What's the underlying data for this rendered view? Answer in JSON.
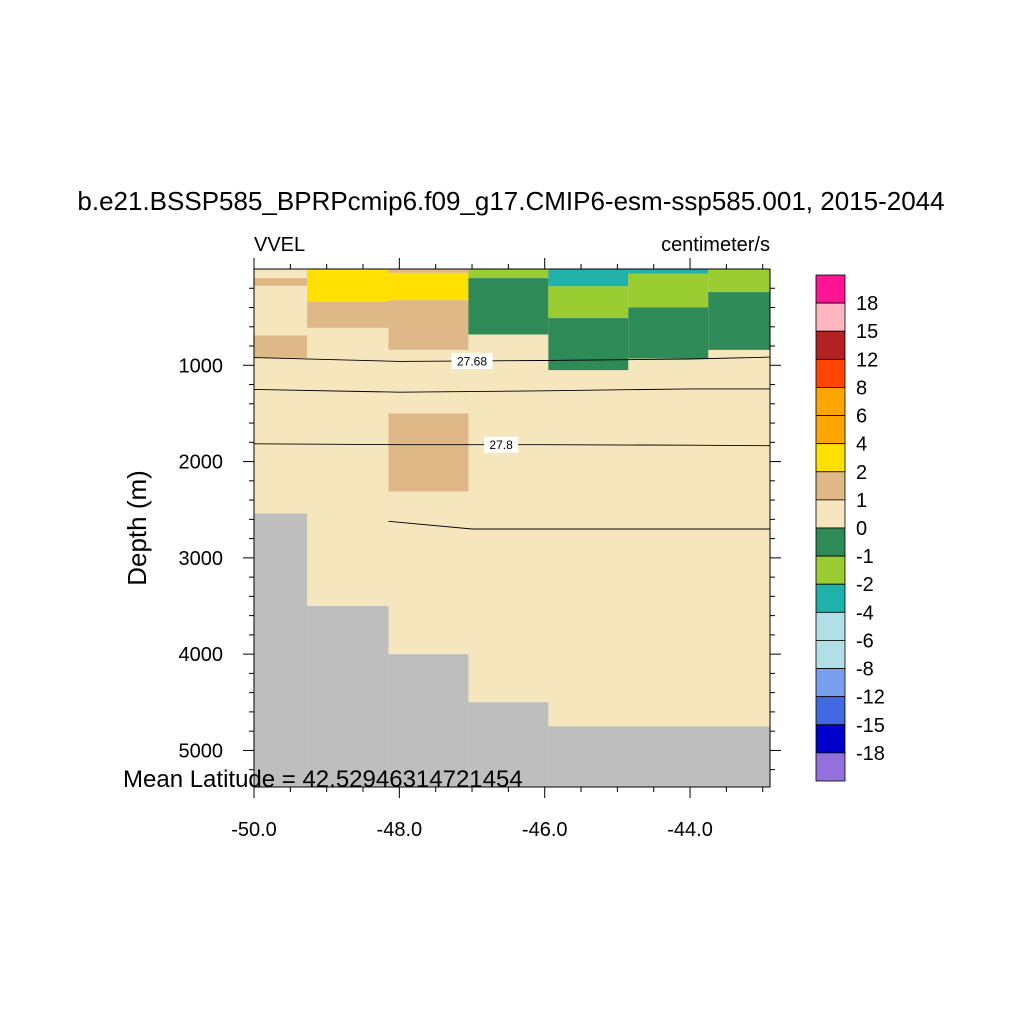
{
  "chart_data": {
    "type": "heatmap",
    "title": "b.e21.BSSP585_BPRPcmip6.f09_g17.CMIP6-esm-ssp585.001, 2015-2044",
    "left_label": "VVEL",
    "right_label": "centimeter/s",
    "ylabel": "Depth (m)",
    "annotation": "Mean Latitude = 42.52946314721454",
    "xlim": [
      -50.0,
      -42.9
    ],
    "ylim": [
      5380,
      0
    ],
    "x_ticks": [
      -50.0,
      -48.0,
      -46.0,
      -44.0
    ],
    "x_tick_labels": [
      "-50.0",
      "-48.0",
      "-46.0",
      "-44.0"
    ],
    "y_ticks": [
      1000,
      2000,
      3000,
      4000,
      5000
    ],
    "y_tick_labels": [
      "1000",
      "2000",
      "3000",
      "4000",
      "5000"
    ],
    "land_color": "#bebebe",
    "colorbar": {
      "labels": [
        "18",
        "15",
        "12",
        "8",
        "6",
        "4",
        "2",
        "1",
        "0",
        "-1",
        "-2",
        "-4",
        "-6",
        "-8",
        "-12",
        "-15",
        "-18"
      ],
      "colors": [
        "#ff1493",
        "#ffb6c1",
        "#b22222",
        "#ff4500",
        "#ffa500",
        "#ffa500",
        "#ffe000",
        "#deb887",
        "#f5e6be",
        "#2e8b57",
        "#9acd32",
        "#20b2aa",
        "#b0e0e6",
        "#b0e0e6",
        "#7b9fef",
        "#4169e1",
        "#0000cd",
        "#9370db"
      ]
    },
    "background": {
      "value_range": "0 to 1",
      "color": "#f5e6be"
    },
    "cells": [
      {
        "x0": -50.0,
        "x1": -49.27,
        "d0": 95,
        "d1": 175,
        "value_range": "1 to 2",
        "color": "#deb887"
      },
      {
        "x0": -49.27,
        "x1": -48.15,
        "d0": 5,
        "d1": 340,
        "value_range": "2 to 4",
        "color": "#ffe000"
      },
      {
        "x0": -48.15,
        "x1": -47.05,
        "d0": 5,
        "d1": 40,
        "value_range": "1 to 2",
        "color": "#deb887"
      },
      {
        "x0": -48.15,
        "x1": -47.05,
        "d0": 40,
        "d1": 325,
        "value_range": "2 to 4",
        "color": "#ffe000"
      },
      {
        "x0": -49.27,
        "x1": -48.15,
        "d0": 340,
        "d1": 610,
        "value_range": "1 to 2",
        "color": "#deb887"
      },
      {
        "x0": -48.15,
        "x1": -47.05,
        "d0": 325,
        "d1": 840,
        "value_range": "1 to 2",
        "color": "#deb887"
      },
      {
        "x0": -50.0,
        "x1": -49.27,
        "d0": 690,
        "d1": 925,
        "value_range": "1 to 2",
        "color": "#deb887"
      },
      {
        "x0": -47.05,
        "x1": -45.95,
        "d0": 5,
        "d1": 95,
        "value_range": "-2 to -1",
        "color": "#9acd32"
      },
      {
        "x0": -47.05,
        "x1": -45.95,
        "d0": 95,
        "d1": 680,
        "value_range": "-1 to 0",
        "color": "#2e8b57"
      },
      {
        "x0": -45.95,
        "x1": -44.85,
        "d0": 5,
        "d1": 180,
        "value_range": "-4 to -2",
        "color": "#20b2aa"
      },
      {
        "x0": -44.85,
        "x1": -43.75,
        "d0": 5,
        "d1": 50,
        "value_range": "-4 to -2",
        "color": "#20b2aa"
      },
      {
        "x0": -45.95,
        "x1": -44.85,
        "d0": 180,
        "d1": 510,
        "value_range": "-2 to -1",
        "color": "#9acd32"
      },
      {
        "x0": -44.85,
        "x1": -43.75,
        "d0": 50,
        "d1": 400,
        "value_range": "-2 to -1",
        "color": "#9acd32"
      },
      {
        "x0": -43.75,
        "x1": -42.9,
        "d0": 5,
        "d1": 240,
        "value_range": "-2 to -1",
        "color": "#9acd32"
      },
      {
        "x0": -45.95,
        "x1": -44.85,
        "d0": 510,
        "d1": 1050,
        "value_range": "-1 to 0",
        "color": "#2e8b57"
      },
      {
        "x0": -44.85,
        "x1": -43.75,
        "d0": 400,
        "d1": 930,
        "value_range": "-1 to 0",
        "color": "#2e8b57"
      },
      {
        "x0": -43.75,
        "x1": -42.9,
        "d0": 240,
        "d1": 840,
        "value_range": "-1 to 0",
        "color": "#2e8b57"
      },
      {
        "x0": -48.15,
        "x1": -47.05,
        "d0": 1500,
        "d1": 2310,
        "value_range": "1 to 2",
        "color": "#deb887"
      }
    ],
    "bathymetry": [
      {
        "x0": -50.0,
        "x1": -49.27,
        "depth": 2540
      },
      {
        "x0": -49.27,
        "x1": -48.15,
        "depth": 3500
      },
      {
        "x0": -48.15,
        "x1": -47.05,
        "depth": 4000
      },
      {
        "x0": -47.05,
        "x1": -45.95,
        "depth": 4500
      },
      {
        "x0": -45.95,
        "x1": -42.9,
        "depth": 4750
      }
    ],
    "contours": [
      {
        "label": "27.68",
        "label_x": -47.0,
        "points": [
          [
            -50.0,
            920
          ],
          [
            -48.0,
            960
          ],
          [
            -46.0,
            950
          ],
          [
            -44.0,
            935
          ],
          [
            -42.9,
            915
          ]
        ]
      },
      {
        "label": "",
        "points": [
          [
            -50.0,
            1250
          ],
          [
            -48.0,
            1280
          ],
          [
            -46.0,
            1265
          ],
          [
            -44.0,
            1245
          ],
          [
            -42.9,
            1245
          ]
        ]
      },
      {
        "label": "27.8",
        "label_x": -46.6,
        "points": [
          [
            -50.0,
            1815
          ],
          [
            -48.0,
            1825
          ],
          [
            -46.0,
            1825
          ],
          [
            -44.0,
            1830
          ],
          [
            -42.9,
            1835
          ]
        ]
      },
      {
        "label": "",
        "points": [
          [
            -48.15,
            2620
          ],
          [
            -47.0,
            2700
          ],
          [
            -46.0,
            2700
          ],
          [
            -44.0,
            2700
          ],
          [
            -42.9,
            2700
          ]
        ]
      }
    ]
  }
}
